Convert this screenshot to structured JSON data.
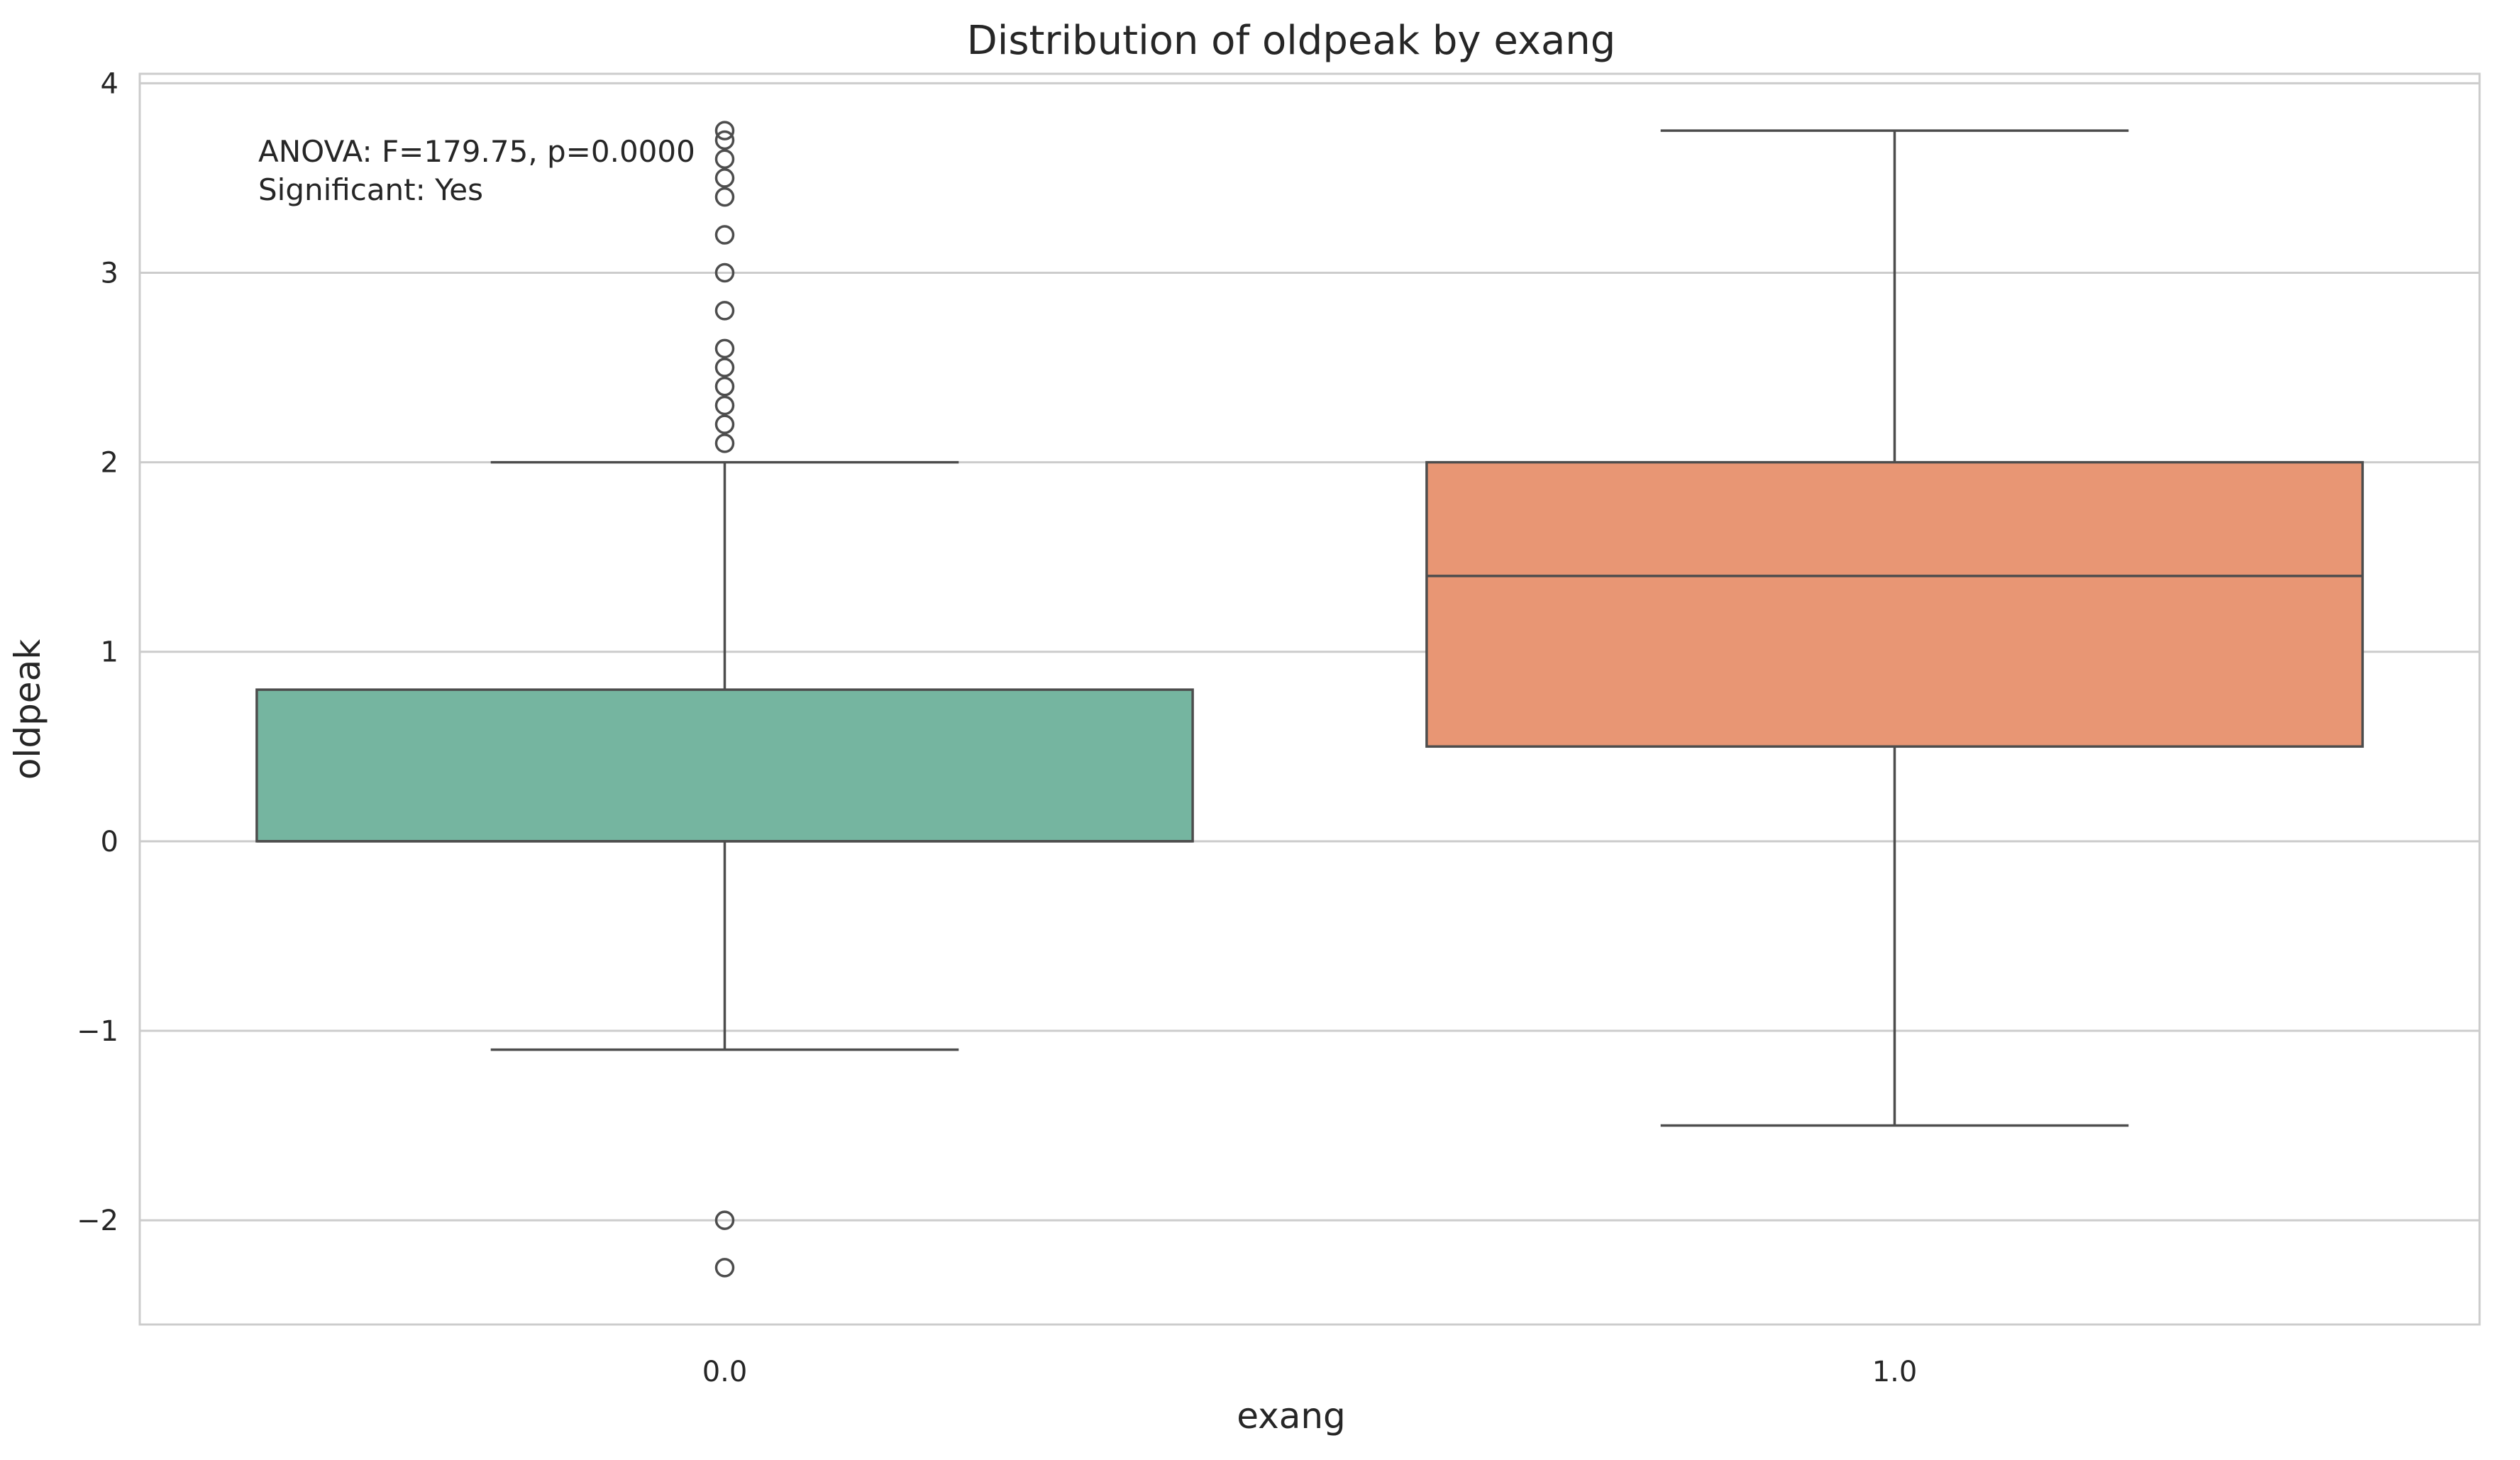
{
  "chart_data": {
    "type": "box",
    "title": "Distribution of oldpeak by exang",
    "xlabel": "exang",
    "ylabel": "oldpeak",
    "categories": [
      "0.0",
      "1.0"
    ],
    "ylim": [
      -2.55,
      4.05
    ],
    "yticks": [
      -2,
      -1,
      0,
      1,
      2,
      3,
      4
    ],
    "ytick_labels": [
      "−2",
      "−1",
      "0",
      "1",
      "2",
      "3",
      "4"
    ],
    "grid": true,
    "boxes": [
      {
        "category": "0.0",
        "whisker_low": -1.1,
        "q1": 0.0,
        "median": 0.0,
        "q3": 0.8,
        "whisker_high": 2.0,
        "outliers": [
          -2.0,
          -2.25,
          2.1,
          2.2,
          2.3,
          2.4,
          2.5,
          2.6,
          2.8,
          3.0,
          3.2,
          3.4,
          3.5,
          3.6,
          3.7,
          3.75
        ],
        "color": "#75b5a0"
      },
      {
        "category": "1.0",
        "whisker_low": -1.5,
        "q1": 0.5,
        "median": 1.4,
        "q3": 2.0,
        "whisker_high": 3.75,
        "outliers": [],
        "color": "#e89674"
      }
    ],
    "annotations": [
      "ANOVA: F=179.75, p=0.0000",
      "Significant: Yes"
    ]
  }
}
